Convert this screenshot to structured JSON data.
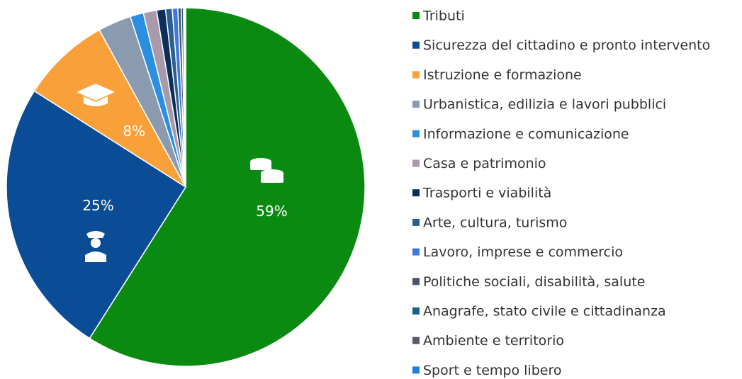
{
  "chart_data": {
    "type": "pie",
    "categories": [
      "Tributi",
      "Sicurezza del cittadino e pronto intervento",
      "Istruzione e formazione",
      "Urbanistica, edilizia e lavori pubblici",
      "Informazione e comunicazione",
      "Casa e patrimonio",
      "Trasporti e viabilità",
      "Arte, cultura, turismo",
      "Lavoro, imprese e commercio",
      "Politiche sociali, disabilità, salute",
      "Anagrafe, stato civile e cittadinanza",
      "Ambiente e territorio",
      "Sport e tempo libero"
    ],
    "values": [
      59,
      25,
      8,
      3,
      1.2,
      1.2,
      0.8,
      0.6,
      0.5,
      0.3,
      0.2,
      0.1,
      0.1
    ],
    "value_labels": [
      "59%",
      "25%",
      "8%",
      null,
      null,
      null,
      null,
      null,
      null,
      null,
      null,
      null,
      null
    ],
    "colors": [
      "#0b8a12",
      "#0a4d96",
      "#f8a03a",
      "#8a9bb0",
      "#2a8fe0",
      "#a89aab",
      "#0b2f5a",
      "#2a5f8e",
      "#3f7ad6",
      "#4a5568",
      "#1e5f8a",
      "#5a5a66",
      "#1d7fe0"
    ],
    "legend": "right"
  }
}
